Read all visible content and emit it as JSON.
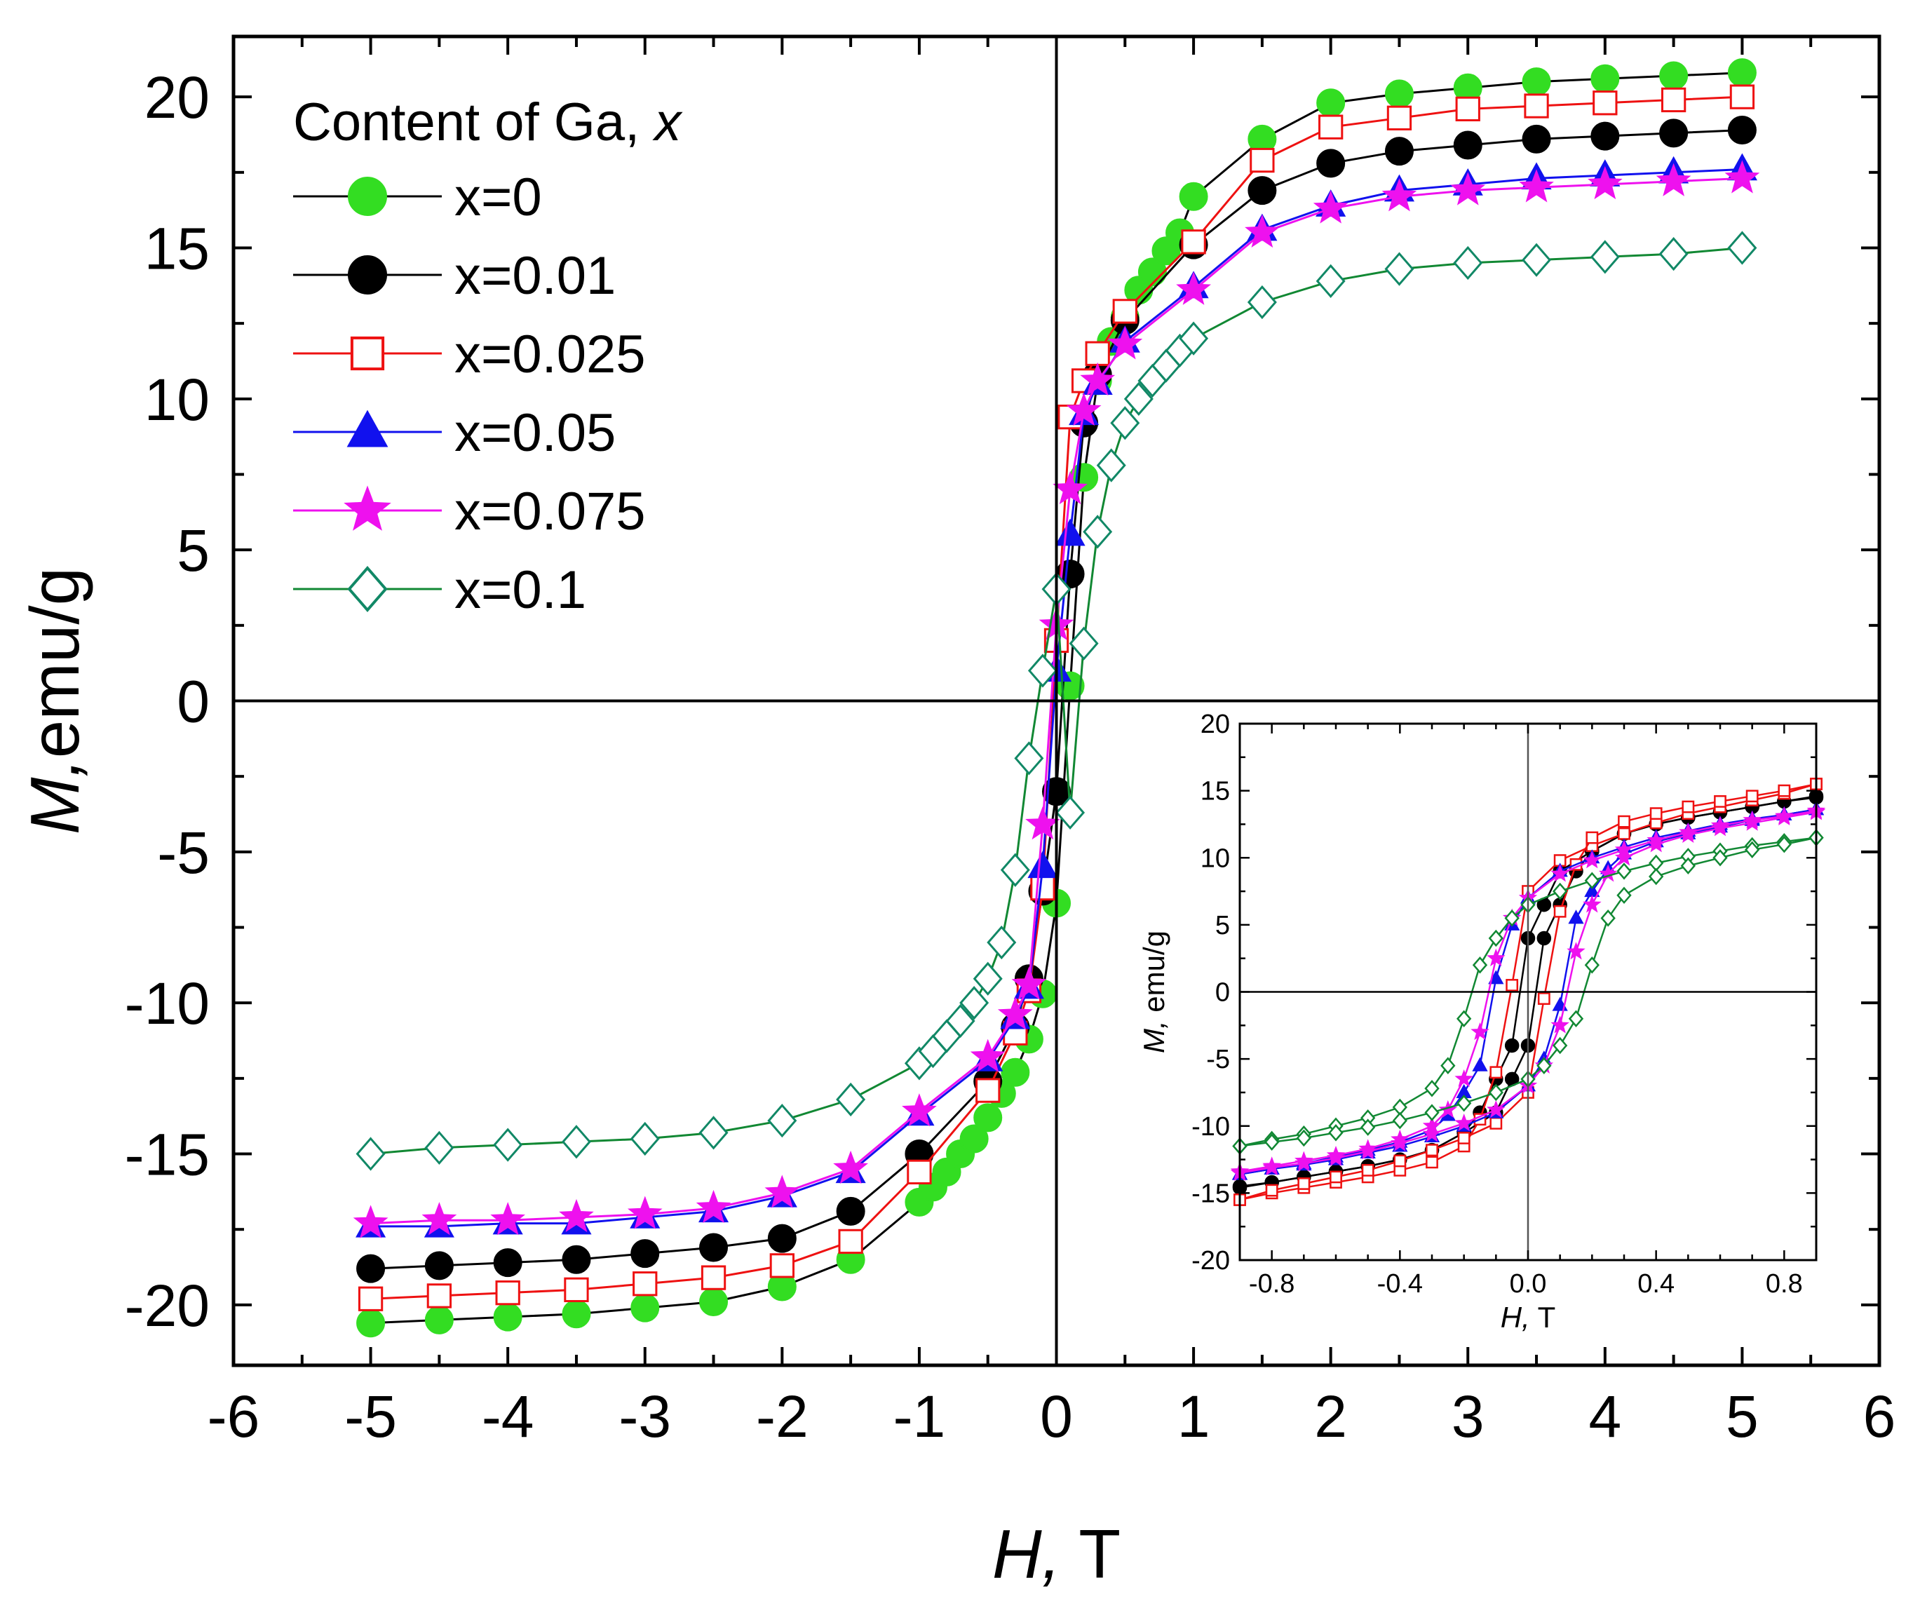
{
  "chart_data": [
    {
      "id": "main",
      "type": "line",
      "title": "",
      "xlabel_italic": "H,",
      "xlabel_rest": " T",
      "ylabel_italic": "M,",
      "ylabel_rest": "emu/g",
      "xlim": [
        -6,
        6
      ],
      "ylim": [
        -22,
        22
      ],
      "xticks": [
        -6,
        -5,
        -4,
        -3,
        -2,
        -1,
        0,
        1,
        2,
        3,
        4,
        5,
        6
      ],
      "yticks": [
        -20,
        -15,
        -10,
        -5,
        0,
        5,
        10,
        15,
        20
      ],
      "legend": {
        "title_prefix": "Content of Ga, ",
        "title_italic": "x",
        "placement": "top-left"
      },
      "series": [
        {
          "name": "x=0",
          "color": "#000000",
          "marker_color": "#33dd22",
          "marker": "circle",
          "filled": true,
          "x": [
            -5,
            -4.5,
            -4,
            -3.5,
            -3,
            -2.5,
            -2,
            -1.5,
            -1,
            -0.9,
            -0.8,
            -0.7,
            -0.6,
            -0.5,
            -0.4,
            -0.3,
            -0.2,
            -0.1,
            0,
            0.1,
            0.2,
            0.3,
            0.4,
            0.5,
            0.6,
            0.7,
            0.8,
            0.9,
            1,
            1.5,
            2,
            2.5,
            3,
            3.5,
            4,
            4.5,
            5
          ],
          "y": [
            -20.6,
            -20.5,
            -20.4,
            -20.3,
            -20.1,
            -19.9,
            -19.4,
            -18.5,
            -16.6,
            -16.1,
            -15.6,
            -15.0,
            -14.5,
            -13.8,
            -13.0,
            -12.3,
            -11.2,
            -9.7,
            -6.7,
            0.5,
            7.4,
            10.6,
            11.9,
            12.7,
            13.6,
            14.2,
            14.9,
            15.5,
            16.7,
            18.6,
            19.8,
            20.1,
            20.3,
            20.5,
            20.6,
            20.7,
            20.8
          ]
        },
        {
          "name": "x=0.01",
          "color": "#000000",
          "marker_color": "#000000",
          "marker": "circle",
          "filled": true,
          "x": [
            -5,
            -4.5,
            -4,
            -3.5,
            -3,
            -2.5,
            -2,
            -1.5,
            -1,
            -0.5,
            -0.3,
            -0.2,
            -0.1,
            0,
            0.1,
            0.2,
            0.3,
            0.5,
            1,
            1.5,
            2,
            2.5,
            3,
            3.5,
            4,
            4.5,
            5
          ],
          "y": [
            -18.8,
            -18.7,
            -18.6,
            -18.5,
            -18.3,
            -18.1,
            -17.8,
            -16.9,
            -15.0,
            -12.6,
            -10.8,
            -9.2,
            -6.3,
            -3.0,
            4.2,
            9.2,
            10.8,
            12.6,
            15.1,
            16.9,
            17.8,
            18.2,
            18.4,
            18.6,
            18.7,
            18.8,
            18.9
          ]
        },
        {
          "name": "x=0.025",
          "color": "#ee1111",
          "marker_color": "#ee1111",
          "marker": "square",
          "filled": false,
          "x": [
            -5,
            -4.5,
            -4,
            -3.5,
            -3,
            -2.5,
            -2,
            -1.5,
            -1,
            -0.5,
            -0.3,
            -0.2,
            -0.1,
            0,
            0.1,
            0.2,
            0.3,
            0.5,
            1,
            1.5,
            2,
            2.5,
            3,
            3.5,
            4,
            4.5,
            5
          ],
          "y": [
            -19.8,
            -19.7,
            -19.6,
            -19.5,
            -19.3,
            -19.1,
            -18.7,
            -17.9,
            -15.6,
            -12.9,
            -11.0,
            -9.6,
            -6.2,
            2.0,
            9.4,
            10.6,
            11.5,
            12.9,
            15.2,
            17.9,
            19.0,
            19.3,
            19.6,
            19.7,
            19.8,
            19.9,
            20.0
          ]
        },
        {
          "name": "x=0.05",
          "color": "#1111ee",
          "marker_color": "#1111ee",
          "marker": "triangle",
          "filled": true,
          "x": [
            -5,
            -4.5,
            -4,
            -3.5,
            -3,
            -2.5,
            -2,
            -1.5,
            -1,
            -0.5,
            -0.3,
            -0.2,
            -0.1,
            0,
            0.1,
            0.2,
            0.3,
            0.5,
            1,
            1.5,
            2,
            2.5,
            3,
            3.5,
            4,
            4.5,
            5
          ],
          "y": [
            -17.4,
            -17.4,
            -17.3,
            -17.3,
            -17.1,
            -16.9,
            -16.4,
            -15.6,
            -13.7,
            -11.9,
            -10.5,
            -9.5,
            -5.5,
            1.0,
            5.5,
            9.5,
            10.5,
            11.9,
            13.7,
            15.6,
            16.4,
            16.9,
            17.1,
            17.3,
            17.4,
            17.5,
            17.6
          ]
        },
        {
          "name": "x=0.075",
          "color": "#ee11ee",
          "marker_color": "#ee11ee",
          "marker": "star",
          "filled": true,
          "x": [
            -5,
            -4.5,
            -4,
            -3.5,
            -3,
            -2.5,
            -2,
            -1.5,
            -1,
            -0.5,
            -0.3,
            -0.2,
            -0.1,
            0,
            0.1,
            0.2,
            0.3,
            0.5,
            1,
            1.5,
            2,
            2.5,
            3,
            3.5,
            4,
            4.5,
            5
          ],
          "y": [
            -17.3,
            -17.2,
            -17.2,
            -17.1,
            -17.0,
            -16.8,
            -16.3,
            -15.5,
            -13.6,
            -11.8,
            -10.4,
            -9.4,
            -4.1,
            2.5,
            7.0,
            9.6,
            10.6,
            11.8,
            13.6,
            15.5,
            16.3,
            16.7,
            16.9,
            17.0,
            17.1,
            17.2,
            17.3
          ]
        },
        {
          "name": "x=0.1",
          "color": "#118833",
          "marker_color": "#118866",
          "marker": "diamond",
          "filled": false,
          "x": [
            -5,
            -4.5,
            -4,
            -3.5,
            -3,
            -2.5,
            -2,
            -1.5,
            -1,
            -0.9,
            -0.8,
            -0.7,
            -0.6,
            -0.5,
            -0.4,
            -0.3,
            -0.2,
            -0.1,
            0,
            0.1,
            0.2,
            0.3,
            0.4,
            0.5,
            0.6,
            0.7,
            0.8,
            0.9,
            1,
            1.5,
            2,
            2.5,
            3,
            3.5,
            4,
            4.5,
            5
          ],
          "y": [
            -15.0,
            -14.8,
            -14.7,
            -14.6,
            -14.5,
            -14.3,
            -13.9,
            -13.2,
            -12.0,
            -11.6,
            -11.1,
            -10.6,
            -10.0,
            -9.2,
            -8.0,
            -5.6,
            -1.9,
            1.0,
            3.7,
            -3.7,
            1.9,
            5.6,
            7.8,
            9.2,
            10.0,
            10.6,
            11.1,
            11.6,
            12.0,
            13.2,
            13.9,
            14.3,
            14.5,
            14.6,
            14.7,
            14.8,
            15.0
          ]
        }
      ]
    },
    {
      "id": "inset",
      "type": "line",
      "title": "",
      "xlabel_italic": "H,",
      "xlabel_rest": " T",
      "ylabel_italic": "M,",
      "ylabel_rest": " emu/g",
      "xlim": [
        -0.9,
        0.9
      ],
      "ylim": [
        -20,
        20
      ],
      "xticks": [
        -0.8,
        -0.4,
        0.0,
        0.4,
        0.8
      ],
      "xtick_labels": [
        "-0.8",
        "-0.4",
        "0.0",
        "0.4",
        "0.8"
      ],
      "yticks": [
        -20,
        -15,
        -10,
        -5,
        0,
        5,
        10,
        15,
        20
      ],
      "series": [
        {
          "name": "x=0.01",
          "color": "#000000",
          "marker": "circle",
          "filled": true,
          "upper_x": [
            -0.9,
            -0.8,
            -0.7,
            -0.6,
            -0.5,
            -0.4,
            -0.3,
            -0.2,
            -0.15,
            -0.1,
            -0.05,
            0.0,
            0.05,
            0.1,
            0.2,
            0.3,
            0.4,
            0.5,
            0.6,
            0.7,
            0.8,
            0.9
          ],
          "upper_y": [
            -14.5,
            -14.2,
            -13.8,
            -13.4,
            -13.0,
            -12.5,
            -11.8,
            -10.5,
            -9.0,
            -6.5,
            -4.0,
            4.0,
            6.5,
            9.0,
            10.5,
            11.8,
            12.5,
            13.0,
            13.4,
            13.8,
            14.2,
            14.6
          ],
          "lower_x": [
            -0.9,
            -0.8,
            -0.7,
            -0.6,
            -0.5,
            -0.4,
            -0.3,
            -0.2,
            -0.1,
            -0.05,
            0.0,
            0.05,
            0.1,
            0.15,
            0.2,
            0.3,
            0.4,
            0.5,
            0.6,
            0.7,
            0.8,
            0.9
          ],
          "lower_y": [
            -14.6,
            -14.2,
            -13.8,
            -13.4,
            -13.0,
            -12.5,
            -11.8,
            -10.5,
            -9.0,
            -6.5,
            -4.0,
            4.0,
            6.5,
            9.0,
            10.5,
            11.8,
            12.5,
            13.0,
            13.4,
            13.8,
            14.2,
            14.5
          ]
        },
        {
          "name": "x=0.025",
          "color": "#ee1111",
          "marker": "square",
          "filled": false,
          "upper_x": [
            -0.9,
            -0.8,
            -0.7,
            -0.6,
            -0.5,
            -0.4,
            -0.3,
            -0.2,
            -0.15,
            -0.1,
            -0.05,
            0.0,
            0.1,
            0.2,
            0.3,
            0.4,
            0.5,
            0.6,
            0.7,
            0.8,
            0.9
          ],
          "upper_y": [
            -15.5,
            -15.0,
            -14.6,
            -14.2,
            -13.8,
            -13.3,
            -12.7,
            -11.5,
            -9.5,
            -6.0,
            0.5,
            7.5,
            9.8,
            10.9,
            11.8,
            12.6,
            13.3,
            13.8,
            14.3,
            14.8,
            15.5
          ],
          "lower_x": [
            -0.9,
            -0.8,
            -0.7,
            -0.6,
            -0.5,
            -0.4,
            -0.3,
            -0.2,
            -0.1,
            0.0,
            0.05,
            0.1,
            0.15,
            0.2,
            0.3,
            0.4,
            0.5,
            0.6,
            0.7,
            0.8,
            0.9
          ],
          "lower_y": [
            -15.5,
            -14.8,
            -14.3,
            -13.8,
            -13.3,
            -12.6,
            -11.8,
            -10.9,
            -9.8,
            -7.5,
            -0.5,
            6.0,
            9.5,
            11.5,
            12.7,
            13.3,
            13.8,
            14.2,
            14.6,
            15.0,
            15.5
          ]
        },
        {
          "name": "x=0.05",
          "color": "#1111ee",
          "marker": "triangle",
          "filled": true,
          "upper_x": [
            -0.9,
            -0.8,
            -0.7,
            -0.6,
            -0.5,
            -0.4,
            -0.3,
            -0.25,
            -0.2,
            -0.15,
            -0.1,
            -0.05,
            0.0,
            0.1,
            0.2,
            0.3,
            0.4,
            0.5,
            0.6,
            0.7,
            0.8,
            0.9
          ],
          "upper_y": [
            -13.6,
            -13.2,
            -12.8,
            -12.3,
            -11.8,
            -11.2,
            -10.3,
            -9.2,
            -7.5,
            -5.5,
            1.0,
            5.0,
            7.0,
            9.0,
            10.0,
            10.8,
            11.5,
            12.0,
            12.5,
            12.9,
            13.2,
            13.6
          ],
          "lower_x": [
            -0.9,
            -0.8,
            -0.7,
            -0.6,
            -0.5,
            -0.4,
            -0.3,
            -0.2,
            -0.1,
            0.0,
            0.05,
            0.1,
            0.15,
            0.2,
            0.25,
            0.3,
            0.4,
            0.5,
            0.6,
            0.7,
            0.8,
            0.9
          ],
          "lower_y": [
            -13.6,
            -13.2,
            -12.9,
            -12.5,
            -12.0,
            -11.5,
            -10.8,
            -10.0,
            -9.0,
            -7.0,
            -5.0,
            -1.0,
            5.5,
            7.5,
            9.2,
            10.3,
            11.2,
            11.8,
            12.3,
            12.8,
            13.2,
            13.6
          ]
        },
        {
          "name": "x=0.075",
          "color": "#ee11ee",
          "marker": "star",
          "filled": true,
          "upper_x": [
            -0.9,
            -0.8,
            -0.7,
            -0.6,
            -0.5,
            -0.4,
            -0.3,
            -0.25,
            -0.2,
            -0.15,
            -0.1,
            -0.05,
            0.0,
            0.1,
            0.2,
            0.3,
            0.4,
            0.5,
            0.6,
            0.7,
            0.8,
            0.9
          ],
          "upper_y": [
            -13.4,
            -13.0,
            -12.6,
            -12.2,
            -11.7,
            -11.0,
            -10.0,
            -8.8,
            -6.5,
            -3.0,
            2.5,
            5.5,
            7.0,
            8.8,
            9.8,
            10.6,
            11.3,
            11.9,
            12.4,
            12.8,
            13.1,
            13.5
          ],
          "lower_x": [
            -0.9,
            -0.8,
            -0.7,
            -0.6,
            -0.5,
            -0.4,
            -0.3,
            -0.2,
            -0.1,
            0.0,
            0.05,
            0.1,
            0.15,
            0.2,
            0.25,
            0.3,
            0.4,
            0.5,
            0.6,
            0.7,
            0.8,
            0.9
          ],
          "lower_y": [
            -13.5,
            -13.1,
            -12.8,
            -12.4,
            -11.9,
            -11.3,
            -10.6,
            -9.8,
            -8.8,
            -7.0,
            -5.5,
            -2.5,
            3.0,
            6.5,
            8.8,
            10.0,
            11.0,
            11.7,
            12.2,
            12.6,
            13.0,
            13.4
          ]
        },
        {
          "name": "x=0.1",
          "color": "#118833",
          "marker": "diamond",
          "filled": false,
          "upper_x": [
            -0.9,
            -0.8,
            -0.7,
            -0.6,
            -0.5,
            -0.4,
            -0.3,
            -0.25,
            -0.2,
            -0.15,
            -0.1,
            -0.05,
            0.0,
            0.1,
            0.2,
            0.3,
            0.4,
            0.5,
            0.6,
            0.7,
            0.8,
            0.9
          ],
          "upper_y": [
            -11.5,
            -11.0,
            -10.6,
            -10.0,
            -9.4,
            -8.6,
            -7.2,
            -5.5,
            -2.0,
            2.0,
            4.0,
            5.5,
            6.5,
            7.5,
            8.3,
            9.0,
            9.6,
            10.1,
            10.5,
            10.9,
            11.2,
            11.5
          ],
          "lower_x": [
            -0.9,
            -0.8,
            -0.7,
            -0.6,
            -0.5,
            -0.4,
            -0.3,
            -0.2,
            -0.1,
            0.0,
            0.05,
            0.1,
            0.15,
            0.2,
            0.25,
            0.3,
            0.4,
            0.5,
            0.6,
            0.7,
            0.8,
            0.9
          ],
          "lower_y": [
            -11.5,
            -11.2,
            -10.9,
            -10.5,
            -10.1,
            -9.6,
            -9.0,
            -8.3,
            -7.5,
            -6.5,
            -5.5,
            -4.0,
            -2.0,
            2.0,
            5.5,
            7.2,
            8.6,
            9.4,
            10.0,
            10.6,
            11.0,
            11.5
          ]
        }
      ]
    }
  ]
}
